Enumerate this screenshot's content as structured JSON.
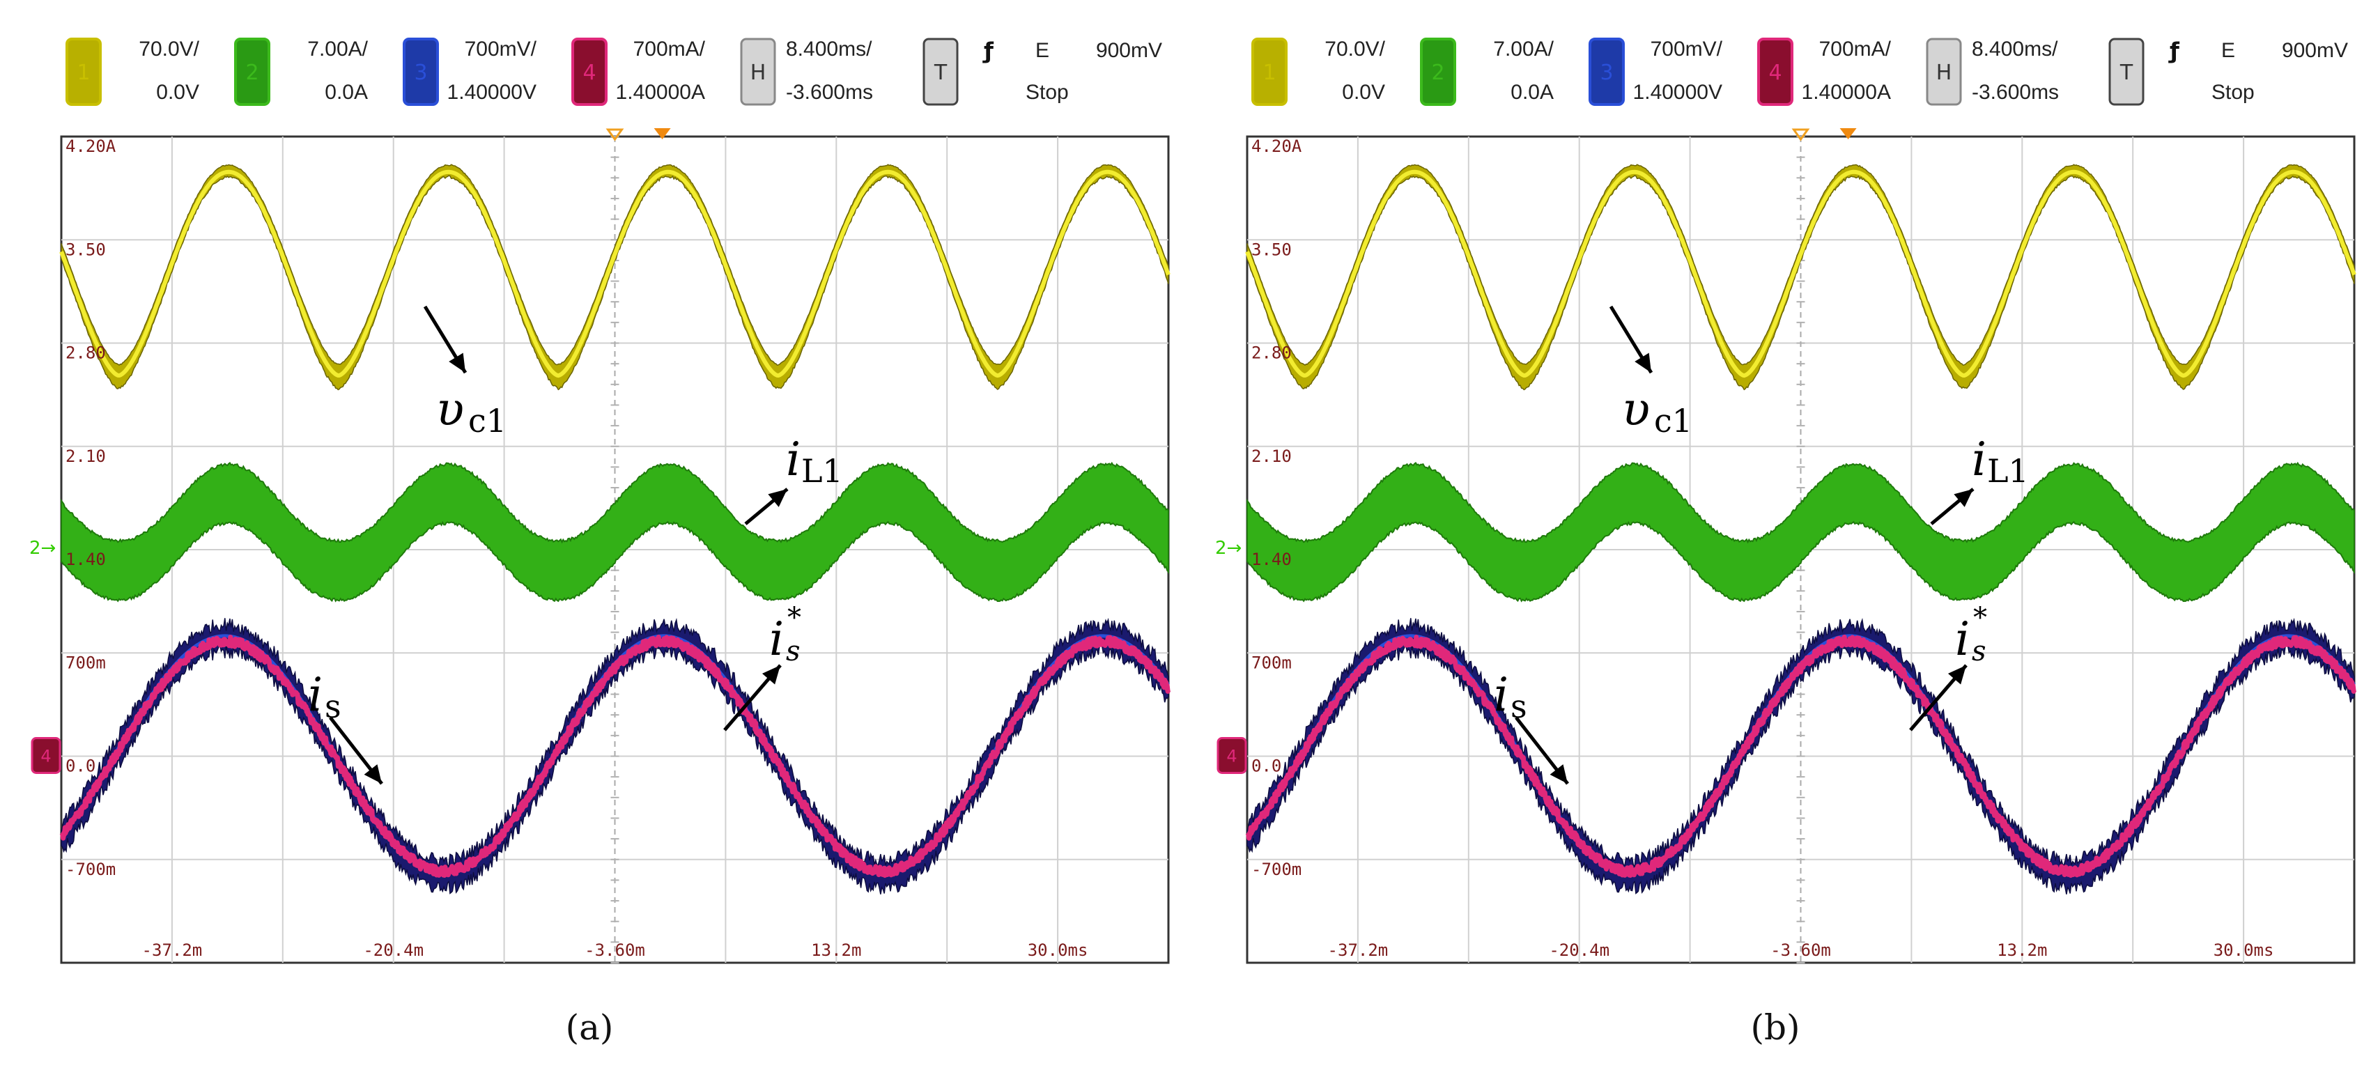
{
  "panels": [
    {
      "caption": "(a)",
      "header": {
        "channels": [
          {
            "num": "1",
            "scale": "70.0V/",
            "offset": "0.0V",
            "color": "#c8bf00",
            "fill": "#b8b000"
          },
          {
            "num": "2",
            "scale": "7.00A/",
            "offset": "0.0A",
            "color": "#3cba1c",
            "fill": "#2a9a14"
          },
          {
            "num": "3",
            "scale": "700mV/",
            "offset": "1.40000V",
            "color": "#2a4fd8",
            "fill": "#1e3aa8"
          },
          {
            "num": "4",
            "scale": "700mA/",
            "offset": "1.40000A",
            "color": "#e0287a",
            "fill": "#8a0e2e"
          }
        ],
        "timebase": {
          "badge": "H",
          "scale": "8.400ms/",
          "offset": "-3.600ms"
        },
        "trigger": {
          "badge": "T",
          "edge": "ƒ",
          "mode": "E",
          "level": "900mV",
          "state": "Stop"
        }
      },
      "ytick_labels": [
        "4.20A",
        "3.50",
        "2.80",
        "2.10",
        "1.40",
        "700m",
        "0.0",
        "-700m"
      ],
      "xtick_labels": [
        "-37.2m",
        "-20.4m",
        "-3.60m",
        "13.2m",
        "30.0ms"
      ],
      "annotations": {
        "vc1": {
          "main": "υ",
          "sub": "c1"
        },
        "iL1": {
          "main": "i",
          "sub": "L1"
        },
        "is": {
          "main": "i",
          "sub": "s"
        },
        "is_star": {
          "main": "i",
          "sub": "s",
          "sup": "*"
        }
      },
      "markers": {
        "ch2": "2",
        "ch4": "4"
      }
    },
    {
      "caption": "(b)",
      "header": {
        "channels": [
          {
            "num": "1",
            "scale": "70.0V/",
            "offset": "0.0V",
            "color": "#c8bf00",
            "fill": "#b8b000"
          },
          {
            "num": "2",
            "scale": "7.00A/",
            "offset": "0.0A",
            "color": "#3cba1c",
            "fill": "#2a9a14"
          },
          {
            "num": "3",
            "scale": "700mV/",
            "offset": "1.40000V",
            "color": "#2a4fd8",
            "fill": "#1e3aa8"
          },
          {
            "num": "4",
            "scale": "700mA/",
            "offset": "1.40000A",
            "color": "#e0287a",
            "fill": "#8a0e2e"
          }
        ],
        "timebase": {
          "badge": "H",
          "scale": "8.400ms/",
          "offset": "-3.600ms"
        },
        "trigger": {
          "badge": "T",
          "edge": "ƒ",
          "mode": "E",
          "level": "900mV",
          "state": "Stop"
        }
      },
      "ytick_labels": [
        "4.20A",
        "3.50",
        "2.80",
        "2.10",
        "1.40",
        "700m",
        "0.0",
        "-700m"
      ],
      "xtick_labels": [
        "-37.2m",
        "-20.4m",
        "-3.60m",
        "13.2m",
        "30.0ms"
      ],
      "annotations": {
        "vc1": {
          "main": "υ",
          "sub": "c1"
        },
        "iL1": {
          "main": "i",
          "sub": "L1"
        },
        "is": {
          "main": "i",
          "sub": "s"
        },
        "is_star": {
          "main": "i",
          "sub": "s",
          "sup": "*"
        }
      },
      "markers": {
        "ch2": "2",
        "ch4": "4"
      }
    }
  ],
  "chart_data": [
    {
      "type": "line",
      "x": {
        "unit": "ms",
        "range": [
          -42.0,
          42.0
        ],
        "ticks": [
          -37.2,
          -20.4,
          -3.6,
          13.2,
          30.0
        ],
        "per_div": 8.4
      },
      "y": {
        "range": [
          -1.4,
          4.2
        ],
        "per_div": 0.7,
        "ticks": [
          4.2,
          3.5,
          2.8,
          2.1,
          1.4,
          0.7,
          0.0,
          -0.7
        ]
      },
      "grid": true,
      "series": [
        {
          "name": "vc1",
          "color": "#e6dc00",
          "waveform": "rectified-sine",
          "period_ms": 16.67,
          "min": 2.6,
          "max": 3.98,
          "peak_times_ms": [
            -29.3,
            -12.5,
            4.2,
            20.9,
            37.6
          ]
        },
        {
          "name": "iL1",
          "color": "#3db81a",
          "waveform": "rectified-sine band",
          "period_ms": 16.67,
          "center_min": 1.26,
          "center_max": 1.78,
          "band_width": 0.38
        },
        {
          "name": "is",
          "color": "#1a1a6e",
          "waveform": "sine",
          "period_ms": 33.3,
          "amplitude": 0.8,
          "offset": 0.0,
          "noise": "heavy"
        },
        {
          "name": "is*",
          "color": "#e0287a",
          "waveform": "sine",
          "period_ms": 33.3,
          "amplitude": 0.78,
          "offset": 0.0,
          "noise": "light"
        }
      ]
    },
    {
      "type": "line",
      "x": {
        "unit": "ms",
        "range": [
          -42.0,
          42.0
        ],
        "ticks": [
          -37.2,
          -20.4,
          -3.6,
          13.2,
          30.0
        ],
        "per_div": 8.4
      },
      "y": {
        "range": [
          -1.4,
          4.2
        ],
        "per_div": 0.7,
        "ticks": [
          4.2,
          3.5,
          2.8,
          2.1,
          1.4,
          0.7,
          0.0,
          -0.7
        ]
      },
      "grid": true,
      "series": [
        {
          "name": "vc1",
          "color": "#e6dc00",
          "waveform": "rectified-sine",
          "period_ms": 16.67,
          "min": 2.6,
          "max": 3.98,
          "peak_times_ms": [
            -29.3,
            -12.5,
            4.2,
            20.9,
            37.6
          ]
        },
        {
          "name": "iL1",
          "color": "#3db81a",
          "waveform": "rectified-sine band",
          "period_ms": 16.67,
          "center_min": 1.26,
          "center_max": 1.78,
          "band_width": 0.38
        },
        {
          "name": "is",
          "color": "#1a1a6e",
          "waveform": "sine",
          "period_ms": 33.3,
          "amplitude": 0.8,
          "offset": 0.0,
          "noise": "heavy"
        },
        {
          "name": "is*",
          "color": "#e0287a",
          "waveform": "sine",
          "period_ms": 33.3,
          "amplitude": 0.78,
          "offset": 0.0,
          "noise": "light"
        }
      ]
    }
  ]
}
